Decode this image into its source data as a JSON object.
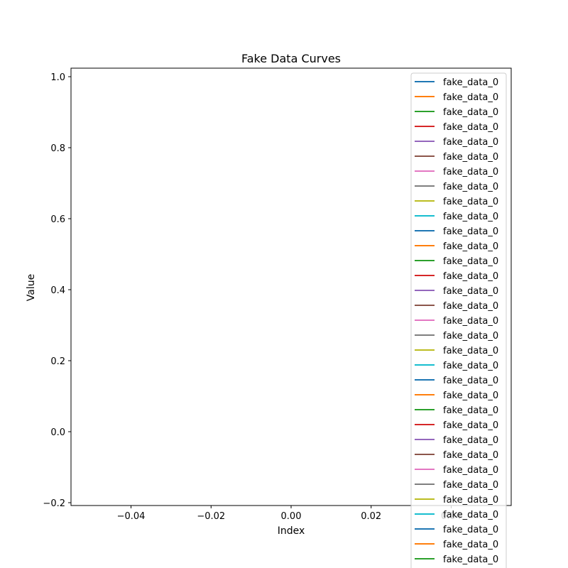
{
  "chart_data": {
    "type": "line",
    "title": "Fake Data Curves",
    "xlabel": "Index",
    "ylabel": "Value",
    "xlim": [
      -0.055,
      0.055
    ],
    "ylim": [
      -0.2,
      1.0
    ],
    "xticks": [
      -0.04,
      -0.02,
      0.0,
      0.02,
      0.04
    ],
    "xtick_labels": [
      "−0.04",
      "−0.02",
      "0.00",
      "0.02",
      "0.04"
    ],
    "yticks": [
      -0.2,
      0.0,
      0.2,
      0.4,
      0.6,
      0.8,
      1.0
    ],
    "ytick_labels": [
      "−0.2",
      "0.0",
      "0.2",
      "0.4",
      "0.6",
      "0.8",
      "1.0"
    ],
    "grid": false,
    "legend_position": "top-right",
    "palette": [
      "#1f77b4",
      "#ff7f0e",
      "#2ca02c",
      "#d62728",
      "#9467bd",
      "#8c564b",
      "#e377c2",
      "#7f7f7f",
      "#bcbd22",
      "#17becf"
    ],
    "series": [
      {
        "name": "fake_data_0",
        "values": []
      },
      {
        "name": "fake_data_0",
        "values": []
      },
      {
        "name": "fake_data_0",
        "values": []
      },
      {
        "name": "fake_data_0",
        "values": []
      },
      {
        "name": "fake_data_0",
        "values": []
      },
      {
        "name": "fake_data_0",
        "values": []
      },
      {
        "name": "fake_data_0",
        "values": []
      },
      {
        "name": "fake_data_0",
        "values": []
      },
      {
        "name": "fake_data_0",
        "values": []
      },
      {
        "name": "fake_data_0",
        "values": []
      },
      {
        "name": "fake_data_0",
        "values": []
      },
      {
        "name": "fake_data_0",
        "values": []
      },
      {
        "name": "fake_data_0",
        "values": []
      },
      {
        "name": "fake_data_0",
        "values": []
      },
      {
        "name": "fake_data_0",
        "values": []
      },
      {
        "name": "fake_data_0",
        "values": []
      },
      {
        "name": "fake_data_0",
        "values": []
      },
      {
        "name": "fake_data_0",
        "values": []
      },
      {
        "name": "fake_data_0",
        "values": []
      },
      {
        "name": "fake_data_0",
        "values": []
      },
      {
        "name": "fake_data_0",
        "values": []
      },
      {
        "name": "fake_data_0",
        "values": []
      },
      {
        "name": "fake_data_0",
        "values": []
      },
      {
        "name": "fake_data_0",
        "values": []
      },
      {
        "name": "fake_data_0",
        "values": []
      },
      {
        "name": "fake_data_0",
        "values": []
      },
      {
        "name": "fake_data_0",
        "values": []
      },
      {
        "name": "fake_data_0",
        "values": []
      },
      {
        "name": "fake_data_0",
        "values": []
      },
      {
        "name": "fake_data_0",
        "values": []
      },
      {
        "name": "fake_data_0",
        "values": []
      },
      {
        "name": "fake_data_0",
        "values": []
      },
      {
        "name": "fake_data_0",
        "values": []
      }
    ]
  }
}
